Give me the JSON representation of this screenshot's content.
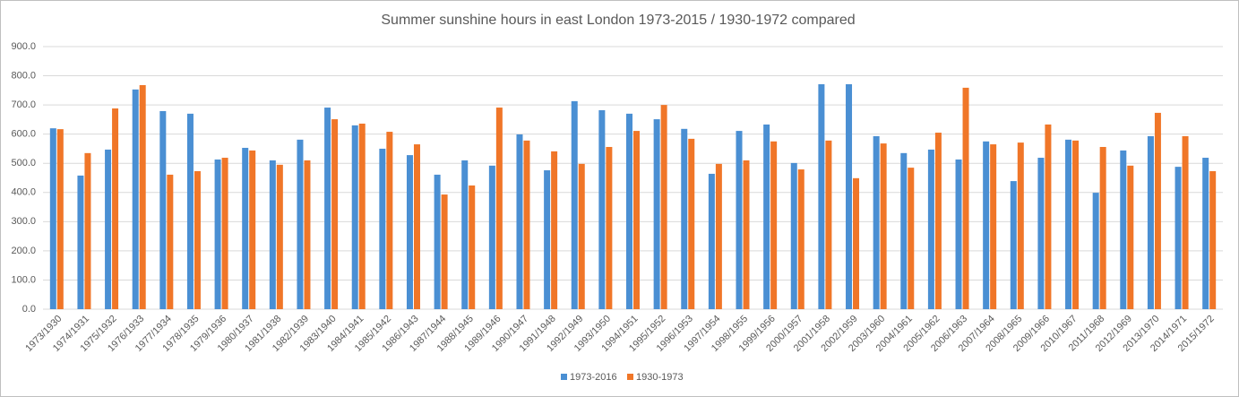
{
  "chart_data": {
    "type": "bar",
    "title": "Summer sunshine hours in east London 1973-2015 / 1930-1972 compared",
    "categories": [
      "1973/1930",
      "1974/1931",
      "1975/1932",
      "1976/1933",
      "1977/1934",
      "1978/1935",
      "1979/1936",
      "1980/1937",
      "1981/1938",
      "1982/1939",
      "1983/1940",
      "1984/1941",
      "1985/1942",
      "1986/1943",
      "1987/1944",
      "1988/1945",
      "1989/1946",
      "1990/1947",
      "1991/1948",
      "1992/1949",
      "1993/1950",
      "1994/1951",
      "1995/1952",
      "1996/1953",
      "1997/1954",
      "1998/1955",
      "1999/1956",
      "2000/1957",
      "2001/1958",
      "2002/1959",
      "2003/1960",
      "2004/1961",
      "2005/1962",
      "2006/1963",
      "2007/1964",
      "2008/1965",
      "2009/1966",
      "2010/1967",
      "2011/1968",
      "2012/1969",
      "2013/1970",
      "2014/1971",
      "2015/1972"
    ],
    "series": [
      {
        "name": "1973-2016",
        "color": "#4a8fd3",
        "values": [
          620,
          458,
          547,
          753,
          679,
          670,
          513,
          553,
          510,
          581,
          691,
          630,
          550,
          528,
          461,
          510,
          492,
          599,
          476,
          713,
          682,
          670,
          651,
          618,
          464,
          611,
          633,
          501,
          771,
          771,
          593,
          535,
          547,
          513,
          575,
          439,
          519,
          581,
          399,
          544,
          593,
          488,
          519
        ]
      },
      {
        "name": "1930-1973",
        "color": "#f07628",
        "values": [
          617,
          535,
          688,
          768,
          461,
          473,
          519,
          544,
          495,
          510,
          651,
          636,
          608,
          565,
          393,
          424,
          691,
          578,
          541,
          498,
          556,
          611,
          700,
          584,
          498,
          510,
          575,
          479,
          578,
          449,
          568,
          485,
          605,
          759,
          565,
          571,
          633,
          578,
          556,
          492,
          673,
          593,
          473
        ]
      }
    ],
    "ylim": [
      0,
      900
    ],
    "yticks": [
      {
        "value": 0,
        "label": "0.0"
      },
      {
        "value": 100,
        "label": "100.0"
      },
      {
        "value": 200,
        "label": "200.0"
      },
      {
        "value": 300,
        "label": "300.0"
      },
      {
        "value": 400,
        "label": "400.0"
      },
      {
        "value": 500,
        "label": "500.0"
      },
      {
        "value": 600,
        "label": "600.0"
      },
      {
        "value": 700,
        "label": "700.0"
      },
      {
        "value": 800,
        "label": "800.0"
      },
      {
        "value": 900,
        "label": "900.0"
      }
    ],
    "grid": true,
    "legend": "bottom"
  }
}
